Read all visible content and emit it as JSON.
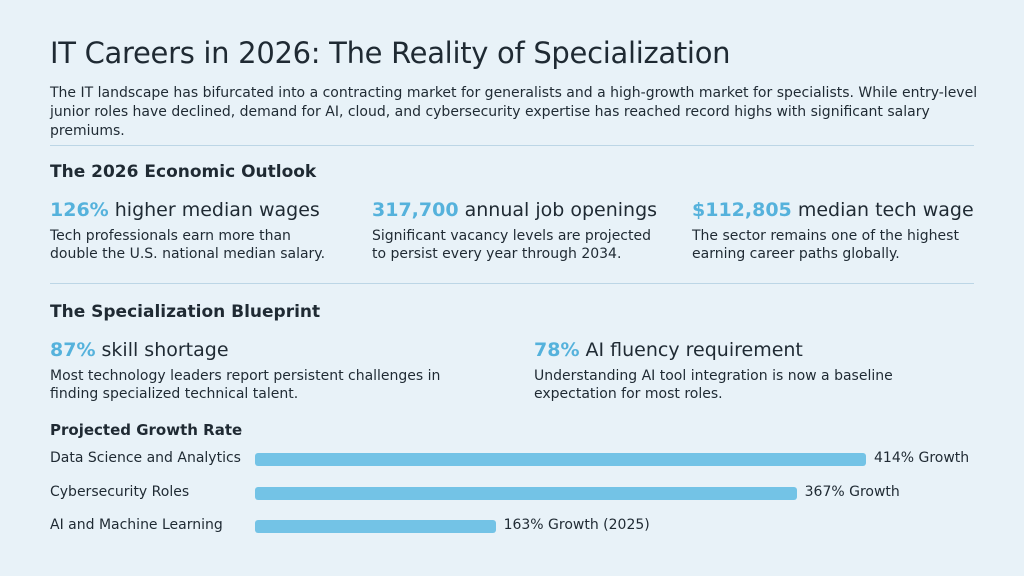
{
  "header": {
    "title": "IT Careers in 2026: The Reality of Specialization",
    "intro": "The IT landscape has bifurcated into a contracting market for generalists and a high-growth market for specialists. While entry-level junior roles have declined, demand for AI, cloud, and cybersecurity expertise has reached record highs with significant salary premiums."
  },
  "outlook": {
    "heading": "The 2026 Economic Outlook",
    "stats": [
      {
        "figure": "126%",
        "label": "higher median wages",
        "text": "Tech professionals earn more than double the U.S. national median salary."
      },
      {
        "figure": "317,700",
        "label": "annual job openings",
        "text": "Significant vacancy levels are projected to persist every year through 2034."
      },
      {
        "figure": "$112,805",
        "label": "median tech wage",
        "text": "The sector remains one of the highest earning career paths globally."
      }
    ]
  },
  "blueprint": {
    "heading": "The Specialization Blueprint",
    "stats": [
      {
        "figure": "87%",
        "label": "skill shortage",
        "text": "Most technology leaders report persistent challenges in finding specialized technical talent."
      },
      {
        "figure": "78%",
        "label": "AI fluency requirement",
        "text": "Understanding AI tool integration is now a baseline expectation for most roles."
      }
    ]
  },
  "chart_data": {
    "type": "bar",
    "title": "Projected Growth Rate",
    "categories": [
      "Data Science and Analytics",
      "Cybersecurity Roles",
      "AI and Machine Learning"
    ],
    "values": [
      414,
      367,
      163
    ],
    "value_labels": [
      "414% Growth",
      "367% Growth",
      "163% Growth (2025)"
    ],
    "color": "#73c3e6"
  }
}
